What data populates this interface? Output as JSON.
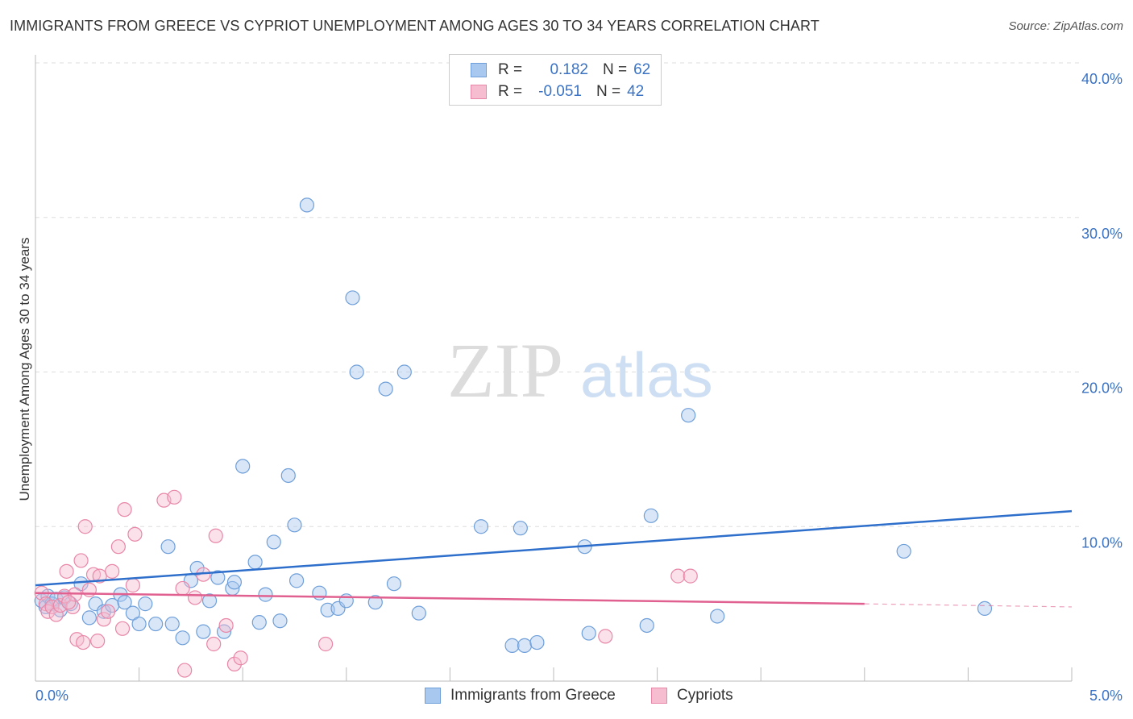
{
  "header": {
    "title": "IMMIGRANTS FROM GREECE VS CYPRIOT UNEMPLOYMENT AMONG AGES 30 TO 34 YEARS CORRELATION CHART",
    "source": "Source: ZipAtlas.com"
  },
  "watermark": {
    "zip": "ZIP",
    "atlas": "atlas"
  },
  "legend": {
    "rows": [
      {
        "r_label": "R =",
        "r_value": "0.182",
        "n_label": "N =",
        "n_value": "62",
        "color": "#a9c8f0",
        "border": "#6f9fd9"
      },
      {
        "r_label": "R =",
        "r_value": "-0.051",
        "n_label": "N =",
        "n_value": "42",
        "color": "#f6bcd0",
        "border": "#e887a8"
      }
    ]
  },
  "bottom_legend": {
    "items": [
      {
        "label": "Immigrants from Greece",
        "color": "#a9c8f0",
        "border": "#6f9fd9"
      },
      {
        "label": "Cypriots",
        "color": "#f6bcd0",
        "border": "#e887a8"
      }
    ]
  },
  "chart_data": {
    "type": "scatter",
    "title": "IMMIGRANTS FROM GREECE VS CYPRIOT UNEMPLOYMENT AMONG AGES 30 TO 34 YEARS CORRELATION CHART",
    "xlabel": "",
    "ylabel": "Unemployment Among Ages 30 to 34 years",
    "xlim": [
      0,
      5
    ],
    "ylim": [
      0,
      40
    ],
    "x_tick_labels": [
      "0.0%",
      "5.0%"
    ],
    "y_ticks": [
      10,
      20,
      30,
      40
    ],
    "y_tick_labels": [
      "10.0%",
      "20.0%",
      "30.0%",
      "40.0%"
    ],
    "grid": true,
    "series": [
      {
        "name": "Immigrants from Greece",
        "color": "#6f9fd9",
        "fill": "rgba(169,200,240,0.45)",
        "points": [
          [
            0.03,
            5.2
          ],
          [
            0.05,
            4.8
          ],
          [
            0.06,
            5.5
          ],
          [
            0.08,
            5.0
          ],
          [
            0.1,
            5.3
          ],
          [
            0.12,
            4.6
          ],
          [
            0.14,
            5.4
          ],
          [
            0.17,
            5.0
          ],
          [
            0.22,
            6.3
          ],
          [
            0.26,
            4.1
          ],
          [
            0.29,
            5.0
          ],
          [
            0.33,
            4.5
          ],
          [
            0.37,
            4.9
          ],
          [
            0.41,
            5.6
          ],
          [
            0.43,
            5.1
          ],
          [
            0.47,
            4.4
          ],
          [
            0.5,
            3.7
          ],
          [
            0.53,
            5.0
          ],
          [
            0.58,
            3.7
          ],
          [
            0.64,
            8.7
          ],
          [
            0.66,
            3.7
          ],
          [
            0.71,
            2.8
          ],
          [
            0.75,
            6.5
          ],
          [
            0.78,
            7.3
          ],
          [
            0.81,
            3.2
          ],
          [
            0.84,
            5.2
          ],
          [
            0.88,
            6.7
          ],
          [
            0.91,
            3.2
          ],
          [
            0.95,
            6.0
          ],
          [
            0.96,
            6.4
          ],
          [
            1.0,
            13.9
          ],
          [
            1.06,
            7.7
          ],
          [
            1.08,
            3.8
          ],
          [
            1.11,
            5.6
          ],
          [
            1.15,
            9.0
          ],
          [
            1.18,
            3.9
          ],
          [
            1.22,
            13.3
          ],
          [
            1.25,
            10.1
          ],
          [
            1.26,
            6.5
          ],
          [
            1.37,
            5.7
          ],
          [
            1.41,
            4.6
          ],
          [
            1.46,
            4.7
          ],
          [
            1.5,
            5.2
          ],
          [
            1.53,
            24.8
          ],
          [
            1.55,
            20.0
          ],
          [
            1.64,
            5.1
          ],
          [
            1.69,
            18.9
          ],
          [
            1.73,
            6.3
          ],
          [
            1.78,
            20.0
          ],
          [
            1.85,
            4.4
          ],
          [
            2.15,
            10.0
          ],
          [
            2.3,
            2.3
          ],
          [
            2.34,
            9.9
          ],
          [
            2.36,
            2.3
          ],
          [
            2.42,
            2.5
          ],
          [
            2.65,
            8.7
          ],
          [
            2.67,
            3.1
          ],
          [
            2.95,
            3.6
          ],
          [
            2.97,
            10.7
          ],
          [
            3.15,
            17.2
          ],
          [
            3.29,
            4.2
          ],
          [
            4.19,
            8.4
          ],
          [
            4.58,
            4.7
          ],
          [
            1.31,
            30.8
          ]
        ]
      },
      {
        "name": "Cypriots",
        "color": "#e887a8",
        "fill": "rgba(246,188,208,0.45)",
        "points": [
          [
            0.03,
            5.7
          ],
          [
            0.05,
            5.0
          ],
          [
            0.06,
            4.5
          ],
          [
            0.08,
            4.8
          ],
          [
            0.1,
            4.3
          ],
          [
            0.12,
            4.9
          ],
          [
            0.14,
            5.5
          ],
          [
            0.15,
            7.1
          ],
          [
            0.18,
            4.8
          ],
          [
            0.19,
            5.6
          ],
          [
            0.2,
            2.7
          ],
          [
            0.22,
            7.8
          ],
          [
            0.23,
            2.5
          ],
          [
            0.24,
            10.0
          ],
          [
            0.26,
            5.9
          ],
          [
            0.28,
            6.9
          ],
          [
            0.3,
            2.6
          ],
          [
            0.31,
            6.8
          ],
          [
            0.33,
            4.0
          ],
          [
            0.35,
            4.5
          ],
          [
            0.37,
            7.1
          ],
          [
            0.4,
            8.7
          ],
          [
            0.42,
            3.4
          ],
          [
            0.43,
            11.1
          ],
          [
            0.47,
            6.2
          ],
          [
            0.48,
            9.5
          ],
          [
            0.62,
            11.7
          ],
          [
            0.67,
            11.9
          ],
          [
            0.71,
            6.0
          ],
          [
            0.72,
            0.7
          ],
          [
            0.77,
            5.4
          ],
          [
            0.81,
            6.9
          ],
          [
            0.86,
            2.4
          ],
          [
            0.87,
            9.4
          ],
          [
            0.92,
            3.6
          ],
          [
            0.96,
            1.1
          ],
          [
            0.99,
            1.5
          ],
          [
            1.4,
            2.4
          ],
          [
            2.75,
            2.9
          ],
          [
            3.1,
            6.8
          ],
          [
            3.16,
            6.8
          ],
          [
            0.16,
            5.1
          ]
        ]
      }
    ],
    "trendlines": [
      {
        "series": "Immigrants from Greece",
        "x": [
          0.0,
          5.0
        ],
        "y": [
          6.2,
          11.0
        ],
        "style": "solid"
      },
      {
        "series": "Cypriots",
        "x": [
          0.0,
          4.0
        ],
        "y": [
          5.7,
          5.0
        ],
        "style": "solid"
      },
      {
        "series": "Cypriots",
        "x": [
          4.0,
          5.0
        ],
        "y": [
          5.0,
          4.8
        ],
        "style": "dashed"
      }
    ]
  }
}
